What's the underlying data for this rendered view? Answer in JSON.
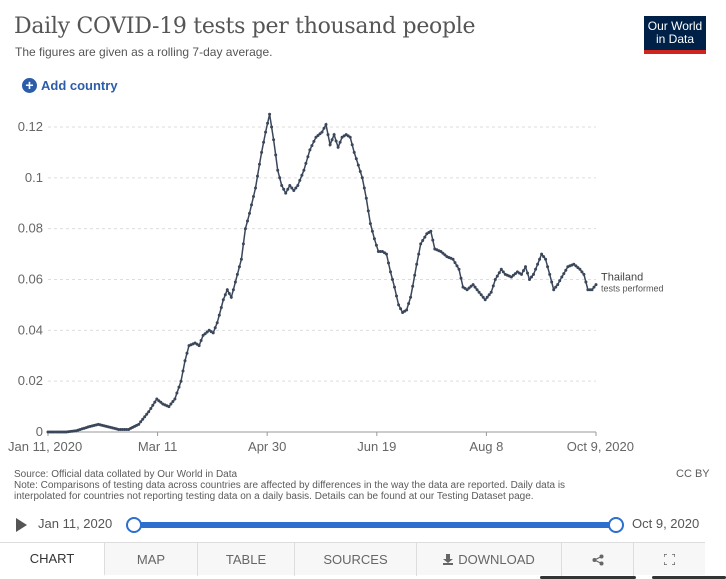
{
  "header": {
    "title": "Daily COVID-19 tests per thousand people",
    "subtitle": "The figures are given as a rolling 7-day average.",
    "logo_line1": "Our World",
    "logo_line2": "in Data",
    "add_country_label": "Add country",
    "add_country_icon": "plus-circle-icon"
  },
  "chart_data": {
    "type": "line",
    "title": "Daily COVID-19 tests per thousand people",
    "subtitle": "The figures are given as a rolling 7-day average.",
    "xlabel": "",
    "ylabel": "",
    "ylim": [
      0,
      0.12
    ],
    "y_ticks": [
      "0",
      "0.02",
      "0.04",
      "0.06",
      "0.08",
      "0.1",
      "0.12"
    ],
    "x_ticks": [
      "Jan 11, 2020",
      "Mar 11",
      "Apr 30",
      "Jun 19",
      "Aug 8",
      "Oct 9, 2020"
    ],
    "x_range": [
      "2020-01-11",
      "2020-10-09"
    ],
    "grid": "horizontal-dashed",
    "legend": "inline-right",
    "color": "#3a4659",
    "series": [
      {
        "name": "Thailand",
        "sublabel": "tests performed",
        "points": [
          [
            "2020-01-11",
            0
          ],
          [
            "2020-01-20",
            0
          ],
          [
            "2020-01-25",
            0.0005
          ],
          [
            "2020-01-31",
            0.002
          ],
          [
            "2020-02-05",
            0.003
          ],
          [
            "2020-02-10",
            0.002
          ],
          [
            "2020-02-15",
            0.001
          ],
          [
            "2020-02-20",
            0.001
          ],
          [
            "2020-02-25",
            0.003
          ],
          [
            "2020-03-01",
            0.008
          ],
          [
            "2020-03-05",
            0.013
          ],
          [
            "2020-03-08",
            0.011
          ],
          [
            "2020-03-11",
            0.01
          ],
          [
            "2020-03-14",
            0.013
          ],
          [
            "2020-03-17",
            0.02
          ],
          [
            "2020-03-19",
            0.028
          ],
          [
            "2020-03-21",
            0.034
          ],
          [
            "2020-03-24",
            0.035
          ],
          [
            "2020-03-26",
            0.034
          ],
          [
            "2020-03-28",
            0.038
          ],
          [
            "2020-03-31",
            0.04
          ],
          [
            "2020-04-02",
            0.039
          ],
          [
            "2020-04-04",
            0.043
          ],
          [
            "2020-04-07",
            0.052
          ],
          [
            "2020-04-09",
            0.056
          ],
          [
            "2020-04-11",
            0.053
          ],
          [
            "2020-04-14",
            0.062
          ],
          [
            "2020-04-16",
            0.068
          ],
          [
            "2020-04-18",
            0.08
          ],
          [
            "2020-04-20",
            0.086
          ],
          [
            "2020-04-23",
            0.096
          ],
          [
            "2020-04-26",
            0.11
          ],
          [
            "2020-04-28",
            0.118
          ],
          [
            "2020-04-30",
            0.125
          ],
          [
            "2020-05-02",
            0.115
          ],
          [
            "2020-05-04",
            0.103
          ],
          [
            "2020-05-06",
            0.097
          ],
          [
            "2020-05-08",
            0.094
          ],
          [
            "2020-05-10",
            0.097
          ],
          [
            "2020-05-12",
            0.095
          ],
          [
            "2020-05-14",
            0.097
          ],
          [
            "2020-05-17",
            0.103
          ],
          [
            "2020-05-20",
            0.111
          ],
          [
            "2020-05-23",
            0.116
          ],
          [
            "2020-05-26",
            0.118
          ],
          [
            "2020-05-28",
            0.121
          ],
          [
            "2020-05-30",
            0.113
          ],
          [
            "2020-06-01",
            0.117
          ],
          [
            "2020-06-03",
            0.112
          ],
          [
            "2020-06-05",
            0.116
          ],
          [
            "2020-06-07",
            0.117
          ],
          [
            "2020-06-09",
            0.116
          ],
          [
            "2020-06-11",
            0.11
          ],
          [
            "2020-06-13",
            0.105
          ],
          [
            "2020-06-15",
            0.1
          ],
          [
            "2020-06-17",
            0.092
          ],
          [
            "2020-06-19",
            0.082
          ],
          [
            "2020-06-21",
            0.076
          ],
          [
            "2020-06-23",
            0.071
          ],
          [
            "2020-06-25",
            0.071
          ],
          [
            "2020-06-27",
            0.07
          ],
          [
            "2020-06-29",
            0.063
          ],
          [
            "2020-07-01",
            0.057
          ],
          [
            "2020-07-03",
            0.05
          ],
          [
            "2020-07-05",
            0.047
          ],
          [
            "2020-07-07",
            0.048
          ],
          [
            "2020-07-09",
            0.053
          ],
          [
            "2020-07-12",
            0.066
          ],
          [
            "2020-07-14",
            0.074
          ],
          [
            "2020-07-17",
            0.078
          ],
          [
            "2020-07-19",
            0.079
          ],
          [
            "2020-07-21",
            0.072
          ],
          [
            "2020-07-24",
            0.071
          ],
          [
            "2020-07-27",
            0.069
          ],
          [
            "2020-07-30",
            0.068
          ],
          [
            "2020-08-02",
            0.064
          ],
          [
            "2020-08-04",
            0.057
          ],
          [
            "2020-08-06",
            0.056
          ],
          [
            "2020-08-09",
            0.058
          ],
          [
            "2020-08-12",
            0.055
          ],
          [
            "2020-08-15",
            0.052
          ],
          [
            "2020-08-18",
            0.055
          ],
          [
            "2020-08-20",
            0.06
          ],
          [
            "2020-08-23",
            0.064
          ],
          [
            "2020-08-25",
            0.062
          ],
          [
            "2020-08-28",
            0.061
          ],
          [
            "2020-08-31",
            0.063
          ],
          [
            "2020-09-02",
            0.062
          ],
          [
            "2020-09-04",
            0.065
          ],
          [
            "2020-09-06",
            0.06
          ],
          [
            "2020-09-08",
            0.062
          ],
          [
            "2020-09-10",
            0.066
          ],
          [
            "2020-09-12",
            0.07
          ],
          [
            "2020-09-14",
            0.068
          ],
          [
            "2020-09-16",
            0.062
          ],
          [
            "2020-09-18",
            0.056
          ],
          [
            "2020-09-20",
            0.058
          ],
          [
            "2020-09-22",
            0.061
          ],
          [
            "2020-09-25",
            0.065
          ],
          [
            "2020-09-28",
            0.066
          ],
          [
            "2020-10-01",
            0.064
          ],
          [
            "2020-10-03",
            0.062
          ],
          [
            "2020-10-05",
            0.056
          ],
          [
            "2020-10-07",
            0.056
          ],
          [
            "2020-10-09",
            0.058
          ]
        ]
      }
    ]
  },
  "footer": {
    "source": "Source: Official data collated by Our World in Data",
    "note_line1": "Note: Comparisons of testing data across countries are affected by differences in the way the data are reported. Daily data is",
    "note_line2": "interpolated for countries not reporting testing data on a daily basis. Details can be found at our Testing Dataset page.",
    "license": "CC BY"
  },
  "timeline": {
    "start_label": "Jan 11, 2020",
    "end_label": "Oct 9, 2020",
    "start_position": 0,
    "end_position": 1,
    "play_icon": "play-icon"
  },
  "tabs": {
    "chart": "CHART",
    "map": "MAP",
    "table": "TABLE",
    "sources": "SOURCES",
    "download": "DOWNLOAD",
    "share_icon": "share-icon",
    "fullscreen_icon": "expand-icon",
    "active": "CHART"
  }
}
